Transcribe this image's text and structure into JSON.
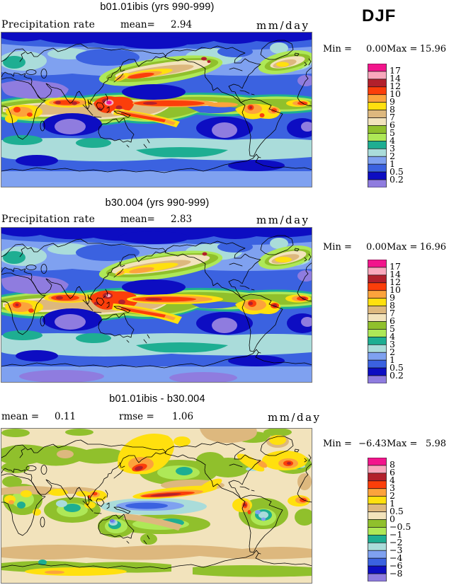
{
  "chart_data": {
    "type": "filled-contour-map",
    "season": "DJF",
    "palette": [
      "#F2158C",
      "#F9A8BD",
      "#B2202C",
      "#FB3E0A",
      "#FCA33C",
      "#FFE00E",
      "#DDB87E",
      "#F2E3BC",
      "#90C02C",
      "#AEE857",
      "#1EAE92",
      "#AADCDA",
      "#7FA1F0",
      "#3B62E0",
      "#0D0DC2",
      "#8F7CDF"
    ],
    "panels": [
      {
        "title": "b01.01ibis (yrs 990-999)",
        "variable": "Precipitation rate",
        "stats": [
          {
            "label": "mean=",
            "value": "2.94"
          }
        ],
        "units": "mm/day",
        "min_label": "Min =",
        "min": "0.00",
        "max_label": "Max =",
        "max": "15.96",
        "colorbar_levels": [
          "17",
          "14",
          "12",
          "10",
          "9",
          "8",
          "7",
          "6",
          "5",
          "4",
          "3",
          "2",
          "1",
          "0.5",
          "0.2"
        ]
      },
      {
        "title": "b30.004 (yrs 990-999)",
        "variable": "Precipitation rate",
        "stats": [
          {
            "label": "mean=",
            "value": "2.83"
          }
        ],
        "units": "mm/day",
        "min_label": "Min =",
        "min": "0.00",
        "max_label": "Max =",
        "max": "16.96",
        "colorbar_levels": [
          "17",
          "14",
          "12",
          "10",
          "9",
          "8",
          "7",
          "6",
          "5",
          "4",
          "3",
          "2",
          "1",
          "0.5",
          "0.2"
        ]
      },
      {
        "title": "b01.01ibis - b30.004",
        "variable": "",
        "stats": [
          {
            "label": "mean =",
            "value": "0.11"
          },
          {
            "label": "rmse =",
            "value": "1.06"
          }
        ],
        "units": "mm/day",
        "min_label": "Min =",
        "min": "−6.43",
        "max_label": "Max =",
        "max": "5.98",
        "colorbar_levels": [
          "8",
          "6",
          "4",
          "3",
          "2",
          "1",
          "0.5",
          "0",
          "−0.5",
          "−1",
          "−2",
          "−3",
          "−4",
          "−6",
          "−8"
        ]
      }
    ]
  }
}
